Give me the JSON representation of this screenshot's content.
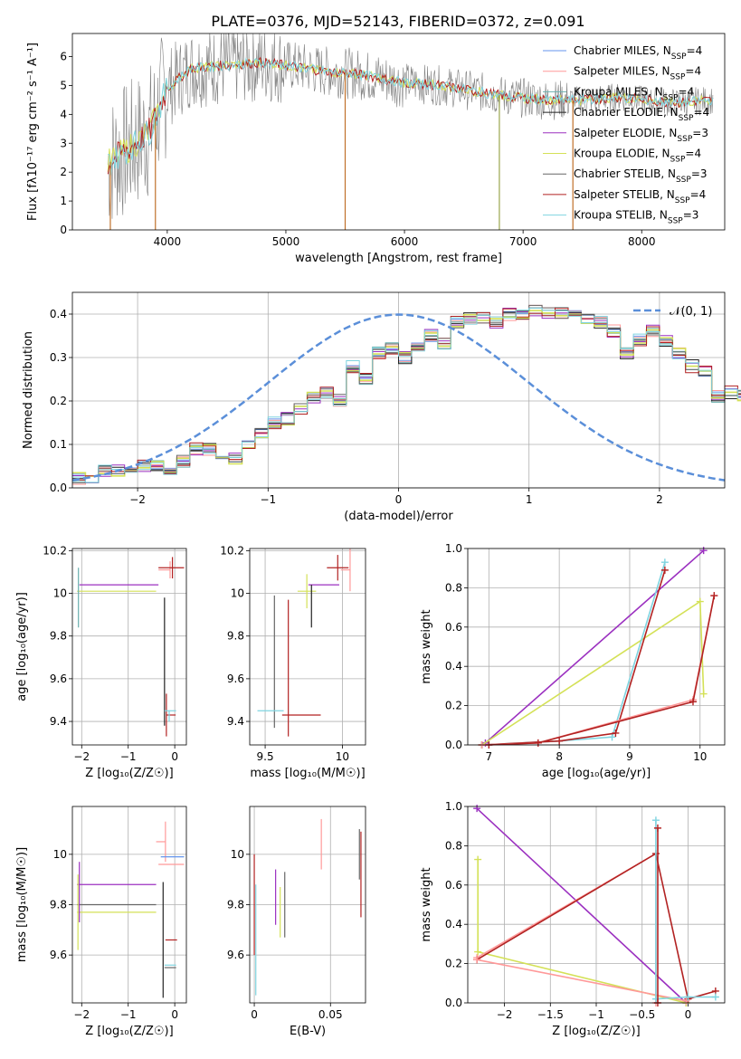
{
  "figure_title": "PLATE=0376, MJD=52143, FIBERID=0372, z=0.091",
  "colors": {
    "Chabrier MILES": "#6495ed",
    "Salpeter MILES": "#ff9999",
    "Kroupa MILES": "#6ab0ae",
    "Chabrier ELODIE": "#222222",
    "Salpeter ELODIE": "#9b30c0",
    "Kroupa ELODIE": "#d4e157",
    "Chabrier STELIB": "#666666",
    "Salpeter STELIB": "#b22222",
    "Kroupa STELIB": "#7fd4e0",
    "data_spectrum": "#808080",
    "gauss": "#5b8fd9"
  },
  "chart_data": [
    {
      "type": "line",
      "id": "spectrum",
      "xlabel": "wavelength [Angstrom, rest frame]",
      "ylabel": "Flux [fλ10⁻¹⁷ erg cm⁻² s⁻¹ A⁻¹]",
      "xlim": [
        3200,
        8700
      ],
      "ylim": [
        0,
        6.8
      ],
      "xticks": [
        4000,
        5000,
        6000,
        7000,
        8000
      ],
      "yticks": [
        0,
        1,
        2,
        3,
        4,
        5,
        6
      ],
      "legend": "right",
      "legend_entries": [
        {
          "model": "Chabrier MILES",
          "nssp": "4"
        },
        {
          "model": "Salpeter MILES",
          "nssp": "4"
        },
        {
          "model": "Kroupa MILES",
          "nssp": "4"
        },
        {
          "model": "Chabrier ELODIE",
          "nssp": "4"
        },
        {
          "model": "Salpeter ELODIE",
          "nssp": "3"
        },
        {
          "model": "Kroupa ELODIE",
          "nssp": "4"
        },
        {
          "model": "Chabrier STELIB",
          "nssp": "3"
        },
        {
          "model": "Salpeter STELIB",
          "nssp": "4"
        },
        {
          "model": "Kroupa STELIB",
          "nssp": "3"
        }
      ],
      "model_continuum": {
        "x": [
          3500,
          3700,
          3850,
          4000,
          4200,
          4500,
          4800,
          5000,
          5300,
          5600,
          6000,
          6300,
          6600,
          6900,
          7200,
          7500,
          7800,
          8000,
          8300,
          8600
        ],
        "y": [
          2.3,
          2.9,
          3.4,
          4.9,
          5.6,
          5.7,
          5.8,
          5.7,
          5.5,
          5.4,
          5.1,
          5.0,
          4.8,
          4.6,
          4.5,
          4.5,
          4.6,
          4.5,
          4.4,
          4.5
        ]
      },
      "model_series_order": [
        "Kroupa ELODIE",
        "Salpeter STELIB",
        "Kroupa STELIB"
      ]
    },
    {
      "type": "step",
      "id": "residuals",
      "xlabel": "(data-model)/error",
      "ylabel": "Normed distribution",
      "xlim": [
        -2.5,
        2.5
      ],
      "ylim": [
        0,
        0.45
      ],
      "xticks": [
        -2,
        -1,
        0,
        1,
        2
      ],
      "yticks": [
        0.0,
        0.1,
        0.2,
        0.3,
        0.4
      ],
      "legend_label": "𝒩(0, 1)",
      "legend": "top-right",
      "bin_width": 0.1,
      "bin_start": -2.5,
      "base_hist": [
        0.02,
        0.02,
        0.04,
        0.04,
        0.04,
        0.05,
        0.05,
        0.04,
        0.06,
        0.09,
        0.09,
        0.06,
        0.07,
        0.1,
        0.13,
        0.15,
        0.16,
        0.18,
        0.21,
        0.22,
        0.2,
        0.28,
        0.25,
        0.31,
        0.32,
        0.3,
        0.33,
        0.35,
        0.33,
        0.38,
        0.39,
        0.39,
        0.38,
        0.4,
        0.4,
        0.41,
        0.4,
        0.4,
        0.4,
        0.39,
        0.38,
        0.36,
        0.31,
        0.34,
        0.36,
        0.34,
        0.31,
        0.28,
        0.27,
        0.21,
        0.22,
        0.21,
        0.17,
        0.18,
        0.15,
        0.13,
        0.12,
        0.1,
        0.08,
        0.07,
        0.06,
        0.06,
        0.05,
        0.06,
        0.04,
        0.04,
        0.03,
        0.03,
        0.03,
        0.03,
        0.03,
        0.02,
        0.03,
        0.03,
        0.03
      ]
    },
    {
      "type": "errorbar",
      "id": "age_vs_Z",
      "xlabel": "Z [log₁₀(Z/Z☉)]",
      "ylabel": "age  [log₁₀(age/yr)]",
      "xlim": [
        -2.2,
        0.25
      ],
      "ylim": [
        9.29,
        10.21
      ],
      "xticks": [
        -2,
        -1,
        0
      ],
      "yticks": [
        9.4,
        9.6,
        9.8,
        10.0,
        10.2
      ],
      "points": [
        {
          "series": "Salpeter ELODIE",
          "x": -1.2,
          "xerr": [
            0.85,
            0.85
          ],
          "y": 10.04,
          "yerr": [
            0.0,
            0.0
          ]
        },
        {
          "series": "Kroupa ELODIE",
          "x": -1.25,
          "xerr": [
            0.85,
            0.85
          ],
          "y": 10.01,
          "yerr": [
            0.0,
            0.0
          ]
        },
        {
          "series": "Kroupa MILES",
          "x": -2.07,
          "xerr": [
            0.0,
            0.0
          ],
          "y": 9.98,
          "yerr": [
            0.14,
            0.14
          ]
        },
        {
          "series": "Salpeter MILES",
          "x": -0.1,
          "xerr": [
            0.25,
            0.0
          ],
          "y": 10.11,
          "yerr": [
            0.04,
            0.04
          ]
        },
        {
          "series": "Salpeter STELIB",
          "x": -0.05,
          "xerr": [
            0.3,
            0.25
          ],
          "y": 10.12,
          "yerr": [
            0.05,
            0.05
          ]
        },
        {
          "series": "Chabrier ELODIE",
          "x": -0.22,
          "xerr": [
            0.0,
            0.0
          ],
          "y": 9.68,
          "yerr": [
            0.3,
            0.3
          ]
        },
        {
          "series": "Salpeter STELIB",
          "x": -0.18,
          "xerr": [
            0.0,
            0.2
          ],
          "y": 9.43,
          "yerr": [
            0.1,
            0.1
          ]
        },
        {
          "series": "Kroupa STELIB",
          "x": -0.12,
          "xerr": [
            0.1,
            0.15
          ],
          "y": 9.45,
          "yerr": [
            0.05,
            0.0
          ]
        }
      ]
    },
    {
      "type": "errorbar",
      "id": "age_vs_mass",
      "xlabel": "mass [log₁₀(M/M☉)]",
      "ylabel": "",
      "xlim": [
        9.4,
        10.15
      ],
      "ylim": [
        9.29,
        10.21
      ],
      "xticks": [
        9.5,
        10.0
      ],
      "yticks": [
        9.4,
        9.6,
        9.8,
        10.0,
        10.2
      ],
      "points": [
        {
          "series": "Chabrier STELIB",
          "x": 9.56,
          "xerr": [
            0.0,
            0.0
          ],
          "y": 9.68,
          "yerr": [
            0.31,
            0.31
          ]
        },
        {
          "series": "Kroupa STELIB",
          "x": 9.57,
          "xerr": [
            0.12,
            0.05
          ],
          "y": 9.45,
          "yerr": [
            0.0,
            0.0
          ]
        },
        {
          "series": "Salpeter STELIB",
          "x": 9.65,
          "xerr": [
            0.0,
            0.0
          ],
          "y": 9.65,
          "yerr": [
            0.32,
            0.32
          ]
        },
        {
          "series": "Salpeter STELIB",
          "x": 9.66,
          "xerr": [
            0.05,
            0.2
          ],
          "y": 9.43,
          "yerr": [
            0.0,
            0.0
          ]
        },
        {
          "series": "Kroupa ELODIE",
          "x": 9.77,
          "xerr": [
            0.06,
            0.06
          ],
          "y": 10.01,
          "yerr": [
            0.08,
            0.08
          ]
        },
        {
          "series": "Salpeter ELODIE",
          "x": 9.88,
          "xerr": [
            0.1,
            0.1
          ],
          "y": 10.04,
          "yerr": [
            0.0,
            0.0
          ]
        },
        {
          "series": "Salpeter STELIB",
          "x": 9.97,
          "xerr": [
            0.07,
            0.07
          ],
          "y": 10.12,
          "yerr": [
            0.06,
            0.06
          ]
        },
        {
          "series": "Salpeter MILES",
          "x": 10.05,
          "xerr": [
            0.06,
            0.0
          ],
          "y": 10.11,
          "yerr": [
            0.1,
            0.1
          ]
        },
        {
          "series": "Chabrier ELODIE",
          "x": 9.8,
          "xerr": [
            0.0,
            0.0
          ],
          "y": 9.94,
          "yerr": [
            0.1,
            0.1
          ]
        }
      ]
    },
    {
      "type": "line",
      "id": "massweight_vs_age",
      "xlabel": "age  [log₁₀(age/yr)]",
      "ylabel": "mass weight",
      "xlim": [
        6.7,
        10.35
      ],
      "ylim": [
        0,
        1
      ],
      "xticks": [
        7,
        8,
        9,
        10
      ],
      "yticks": [
        0.0,
        0.2,
        0.4,
        0.6,
        0.8,
        1.0
      ],
      "series": [
        {
          "name": "Salpeter ELODIE",
          "x": [
            6.95,
            10.05
          ],
          "y": [
            0.01,
            0.99
          ]
        },
        {
          "name": "Kroupa ELODIE",
          "x": [
            6.9,
            10.0,
            10.05
          ],
          "y": [
            0.0,
            0.73,
            0.26
          ]
        },
        {
          "name": "Kroupa STELIB",
          "x": [
            6.9,
            8.0,
            8.75,
            9.5
          ],
          "y": [
            0.0,
            0.02,
            0.04,
            0.93
          ]
        },
        {
          "name": "Salpeter STELIB",
          "x": [
            6.9,
            8.0,
            8.8,
            9.5
          ],
          "y": [
            0.0,
            0.02,
            0.06,
            0.89
          ]
        },
        {
          "name": "Salpeter MILES",
          "x": [
            6.9,
            7.7,
            9.9,
            10.2
          ],
          "y": [
            0.0,
            0.01,
            0.23,
            0.76
          ]
        },
        {
          "name": "Salpeter STELIB",
          "x": [
            7.0,
            7.7,
            9.9,
            10.2
          ],
          "y": [
            0.0,
            0.01,
            0.22,
            0.76
          ]
        }
      ]
    },
    {
      "type": "errorbar",
      "id": "mass_vs_Z",
      "xlabel": "Z [log₁₀(Z/Z☉)]",
      "ylabel": "mass [log₁₀(M/M☉)]",
      "xlim": [
        -2.2,
        0.25
      ],
      "ylim": [
        9.41,
        10.19
      ],
      "xticks": [
        -2,
        -1,
        0
      ],
      "yticks": [
        9.6,
        9.8,
        10.0
      ],
      "points": [
        {
          "series": "Salpeter ELODIE",
          "x": -1.25,
          "xerr": [
            0.85,
            0.85
          ],
          "y": 9.88,
          "yerr": [
            0.0,
            0.0
          ]
        },
        {
          "series": "Chabrier STELIB",
          "x": -1.25,
          "xerr": [
            0.85,
            0.85
          ],
          "y": 9.8,
          "yerr": [
            0.0,
            0.0
          ]
        },
        {
          "series": "Kroupa ELODIE",
          "x": -1.25,
          "xerr": [
            0.85,
            0.85
          ],
          "y": 9.77,
          "yerr": [
            0.0,
            0.0
          ]
        },
        {
          "series": "Kroupa ELODIE",
          "x": -2.08,
          "xerr": [
            0.0,
            0.0
          ],
          "y": 9.77,
          "yerr": [
            0.15,
            0.15
          ]
        },
        {
          "series": "Salpeter ELODIE",
          "x": -2.05,
          "xerr": [
            0.0,
            0.0
          ],
          "y": 9.85,
          "yerr": [
            0.12,
            0.12
          ]
        },
        {
          "series": "Salpeter MILES",
          "x": -0.2,
          "xerr": [
            0.2,
            0.0
          ],
          "y": 10.05,
          "yerr": [
            0.08,
            0.08
          ]
        },
        {
          "series": "Chabrier MILES",
          "x": -0.05,
          "xerr": [
            0.25,
            0.25
          ],
          "y": 9.99,
          "yerr": [
            0.0,
            0.0
          ]
        },
        {
          "series": "Salpeter MILES",
          "x": -0.05,
          "xerr": [
            0.3,
            0.25
          ],
          "y": 9.96,
          "yerr": [
            0.0,
            0.0
          ]
        },
        {
          "series": "Salpeter STELIB",
          "x": -0.1,
          "xerr": [
            0.1,
            0.15
          ],
          "y": 9.66,
          "yerr": [
            0.0,
            0.0
          ]
        },
        {
          "series": "Chabrier ELODIE",
          "x": -0.25,
          "xerr": [
            0.0,
            0.0
          ],
          "y": 9.66,
          "yerr": [
            0.23,
            0.23
          ]
        },
        {
          "series": "Kroupa STELIB",
          "x": -0.12,
          "xerr": [
            0.1,
            0.15
          ],
          "y": 9.56,
          "yerr": [
            0.0,
            0.0
          ]
        },
        {
          "series": "Chabrier STELIB",
          "x": -0.12,
          "xerr": [
            0.1,
            0.15
          ],
          "y": 9.55,
          "yerr": [
            0.0,
            0.0
          ]
        }
      ]
    },
    {
      "type": "errorbar",
      "id": "mass_vs_EBV",
      "xlabel": "E(B-V)",
      "ylabel": "",
      "xlim": [
        -0.003,
        0.073
      ],
      "ylim": [
        9.41,
        10.19
      ],
      "xticks": [
        0.0,
        0.05
      ],
      "yticks": [
        9.6,
        9.8,
        10.0
      ],
      "points": [
        {
          "series": "Salpeter STELIB",
          "x": 0.0,
          "xerr": [
            0,
            0
          ],
          "y": 9.8,
          "yerr": [
            0.2,
            0.2
          ]
        },
        {
          "series": "Kroupa STELIB",
          "x": 0.001,
          "xerr": [
            0,
            0
          ],
          "y": 9.66,
          "yerr": [
            0.22,
            0.22
          ]
        },
        {
          "series": "Salpeter ELODIE",
          "x": 0.014,
          "xerr": [
            0,
            0
          ],
          "y": 9.83,
          "yerr": [
            0.11,
            0.11
          ]
        },
        {
          "series": "Kroupa ELODIE",
          "x": 0.017,
          "xerr": [
            0,
            0
          ],
          "y": 9.77,
          "yerr": [
            0.1,
            0.1
          ]
        },
        {
          "series": "Chabrier STELIB",
          "x": 0.02,
          "xerr": [
            0,
            0
          ],
          "y": 9.8,
          "yerr": [
            0.13,
            0.13
          ]
        },
        {
          "series": "Salpeter MILES",
          "x": 0.044,
          "xerr": [
            0,
            0
          ],
          "y": 10.04,
          "yerr": [
            0.1,
            0.1
          ]
        },
        {
          "series": "Salpeter STELIB",
          "x": 0.07,
          "xerr": [
            0,
            0
          ],
          "y": 9.92,
          "yerr": [
            0.17,
            0.17
          ]
        },
        {
          "series": "Chabrier STELIB",
          "x": 0.069,
          "xerr": [
            0,
            0
          ],
          "y": 10.0,
          "yerr": [
            0.1,
            0.1
          ]
        }
      ]
    },
    {
      "type": "line",
      "id": "massweight_vs_Z",
      "xlabel": "Z [log₁₀(Z/Z☉)]",
      "ylabel": "mass weight",
      "xlim": [
        -2.4,
        0.4
      ],
      "ylim": [
        0,
        1
      ],
      "xticks": [
        -2.0,
        -1.5,
        -1.0,
        -0.5,
        0.0
      ],
      "yticks": [
        0.0,
        0.2,
        0.4,
        0.6,
        0.8,
        1.0
      ],
      "series": [
        {
          "name": "Salpeter ELODIE",
          "x": [
            -2.3,
            -0.02
          ],
          "y": [
            0.99,
            0.0
          ]
        },
        {
          "name": "Kroupa ELODIE",
          "x": [
            -2.29,
            -2.29,
            -0.02
          ],
          "y": [
            0.73,
            0.26,
            0.0
          ]
        },
        {
          "name": "Salpeter MILES",
          "x": [
            -2.3,
            -0.35,
            -0.35
          ],
          "y": [
            0.23,
            0.76,
            0.0
          ]
        },
        {
          "name": "Salpeter STELIB",
          "x": [
            -2.3,
            -0.35,
            0.0,
            0.3
          ],
          "y": [
            0.22,
            0.76,
            0.02,
            0.06
          ]
        },
        {
          "name": "Salpeter MILES",
          "x": [
            -2.3,
            -0.02
          ],
          "y": [
            0.22,
            0.01
          ]
        },
        {
          "name": "Kroupa STELIB",
          "x": [
            -0.35,
            -0.35,
            0.0,
            0.3
          ],
          "y": [
            0.93,
            0.02,
            0.03,
            0.03
          ]
        },
        {
          "name": "Salpeter STELIB",
          "x": [
            -0.33,
            -0.33
          ],
          "y": [
            0.89,
            0.0
          ]
        }
      ]
    }
  ]
}
